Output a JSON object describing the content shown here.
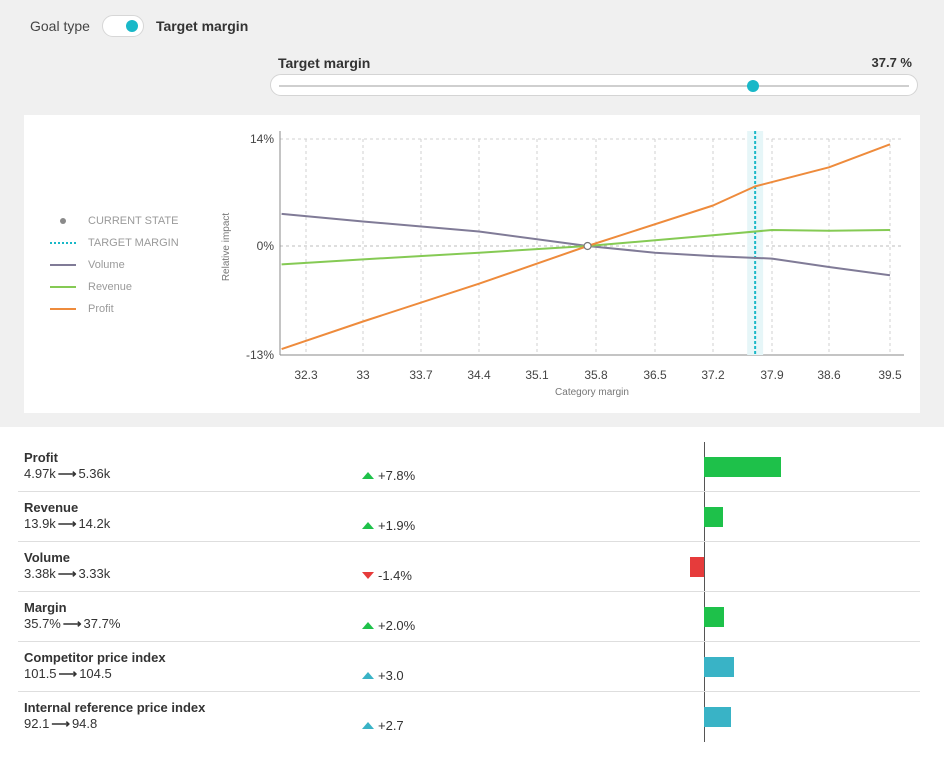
{
  "goal": {
    "label": "Goal type",
    "value": "Target margin"
  },
  "slider": {
    "title": "Target margin",
    "value_label": "37.7 %",
    "min": 32.3,
    "max": 39.5,
    "value": 37.7
  },
  "colors": {
    "volume": "#807b97",
    "revenue": "#85ca54",
    "profit": "#ee8b3c",
    "target": "#19b8c8",
    "accent": "#19b8c8",
    "positive": "#1ec14a",
    "negative": "#e63b3b",
    "neutral_positive": "#39b3c6"
  },
  "chart_data": {
    "type": "line",
    "xlabel": "Category margin",
    "ylabel": "Relative impact",
    "x_ticks": [
      "32.3",
      "33",
      "33.7",
      "34.4",
      "35.1",
      "35.8",
      "36.5",
      "37.2",
      "37.9",
      "38.6",
      "39.5"
    ],
    "x_tick_values": [
      32.3,
      33.0,
      33.7,
      34.4,
      35.1,
      35.8,
      36.5,
      37.2,
      37.9,
      38.6,
      39.5
    ],
    "y_ticks": [
      "14%",
      "0%",
      "-13%"
    ],
    "y_tick_values": [
      14,
      0,
      -13
    ],
    "xlim": [
      32.0,
      39.5
    ],
    "ylim": [
      -13,
      14
    ],
    "grid": true,
    "current_state": {
      "x": 35.7,
      "y": 0
    },
    "target": 37.7,
    "legend": {
      "current_state": "CURRENT STATE",
      "target_margin": "TARGET MARGIN",
      "volume": "Volume",
      "revenue": "Revenue",
      "profit": "Profit"
    },
    "series": [
      {
        "name": "Volume",
        "color": "#807b97",
        "points": [
          [
            32.0,
            4.2
          ],
          [
            33.0,
            3.2
          ],
          [
            34.4,
            1.9
          ],
          [
            35.7,
            0
          ],
          [
            36.5,
            -0.8
          ],
          [
            37.2,
            -1.2
          ],
          [
            37.9,
            -1.5
          ],
          [
            38.6,
            -2.5
          ],
          [
            39.5,
            -3.5
          ]
        ]
      },
      {
        "name": "Revenue",
        "color": "#85ca54",
        "points": [
          [
            32.0,
            -2.2
          ],
          [
            33.0,
            -1.6
          ],
          [
            34.4,
            -0.8
          ],
          [
            35.7,
            0
          ],
          [
            37.2,
            1.4
          ],
          [
            37.9,
            2.1
          ],
          [
            38.6,
            2.0
          ],
          [
            39.5,
            2.1
          ]
        ]
      },
      {
        "name": "Profit",
        "color": "#ee8b3c",
        "points": [
          [
            32.0,
            -12.3
          ],
          [
            33.0,
            -9.0
          ],
          [
            34.4,
            -4.5
          ],
          [
            35.7,
            0
          ],
          [
            37.2,
            5.3
          ],
          [
            37.7,
            7.8
          ],
          [
            38.6,
            10.3
          ],
          [
            39.5,
            13.3
          ]
        ]
      }
    ]
  },
  "metrics": [
    {
      "name": "Profit",
      "from": "4.97k",
      "to": "5.36k",
      "arrow": "⟶",
      "change": "+7.8%",
      "direction": "up",
      "kind": "positive",
      "value": 7.8
    },
    {
      "name": "Revenue",
      "from": "13.9k",
      "to": "14.2k",
      "arrow": "⟶",
      "change": "+1.9%",
      "direction": "up",
      "kind": "positive",
      "value": 1.9
    },
    {
      "name": "Volume",
      "from": "3.38k",
      "to": "3.33k",
      "arrow": "⟶",
      "change": "-1.4%",
      "direction": "down",
      "kind": "negative",
      "value": -1.4
    },
    {
      "name": "Margin",
      "from": "35.7%",
      "to": "37.7%",
      "arrow": "⟶",
      "change": "+2.0%",
      "direction": "up",
      "kind": "positive",
      "value": 2.0
    },
    {
      "name": "Competitor price index",
      "from": "101.5",
      "to": "104.5",
      "arrow": "⟶",
      "change": "+3.0",
      "direction": "up",
      "kind": "neutral",
      "value": 3.0
    },
    {
      "name": "Internal reference price index",
      "from": "92.1",
      "to": "94.8",
      "arrow": "⟶",
      "change": "+2.7",
      "direction": "up",
      "kind": "neutral",
      "value": 2.7
    }
  ]
}
